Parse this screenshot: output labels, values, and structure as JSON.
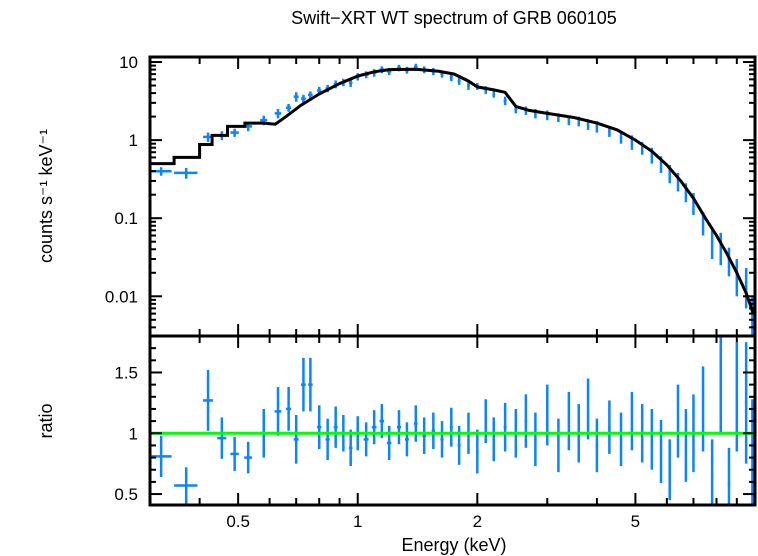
{
  "chart_data": [
    {
      "type": "scatter",
      "title": "Swift−XRT WT spectrum of GRB 060105",
      "xlabel": "Energy (keV)",
      "ylabel": "counts s⁻¹ keV⁻¹",
      "xscale": "log",
      "yscale": "log",
      "xlim": [
        0.3,
        10
      ],
      "ylim": [
        0.0031,
        11.6
      ],
      "yticks": [
        {
          "v": 10,
          "label": "10"
        },
        {
          "v": 1,
          "label": "1"
        },
        {
          "v": 0.1,
          "label": "0.1"
        },
        {
          "v": 0.01,
          "label": "0.01"
        }
      ],
      "colors": {
        "data": "#0a84ff",
        "model": "#000000"
      },
      "series": [
        {
          "kind": "data-with-errors",
          "points": [
            [
              0.32,
              0.02,
              0.4,
              0.05
            ],
            [
              0.37,
              0.025,
              0.38,
              0.06
            ],
            [
              0.42,
              0.012,
              1.1,
              0.15
            ],
            [
              0.455,
              0.012,
              1.15,
              0.15
            ],
            [
              0.49,
              0.012,
              1.25,
              0.15
            ],
            [
              0.53,
              0.012,
              1.5,
              0.2
            ],
            [
              0.58,
              0.012,
              1.8,
              0.25
            ],
            [
              0.63,
              0.012,
              2.2,
              0.3
            ],
            [
              0.67,
              0.01,
              2.6,
              0.3
            ],
            [
              0.7,
              0.01,
              3.6,
              0.5
            ],
            [
              0.73,
              0.01,
              3.4,
              0.4
            ],
            [
              0.76,
              0.01,
              3.8,
              0.4
            ],
            [
              0.8,
              0.01,
              4.3,
              0.5
            ],
            [
              0.84,
              0.01,
              4.6,
              0.5
            ],
            [
              0.88,
              0.01,
              5.2,
              0.6
            ],
            [
              0.92,
              0.01,
              5.5,
              0.6
            ],
            [
              0.96,
              0.01,
              5.4,
              0.6
            ],
            [
              1.0,
              0.01,
              6.5,
              0.7
            ],
            [
              1.05,
              0.015,
              6.9,
              0.7
            ],
            [
              1.1,
              0.015,
              7.3,
              0.8
            ],
            [
              1.15,
              0.015,
              8.0,
              0.8
            ],
            [
              1.2,
              0.015,
              7.6,
              0.8
            ],
            [
              1.27,
              0.015,
              8.4,
              0.8
            ],
            [
              1.33,
              0.015,
              7.9,
              0.8
            ],
            [
              1.4,
              0.015,
              8.6,
              0.9
            ],
            [
              1.47,
              0.015,
              8.0,
              0.8
            ],
            [
              1.55,
              0.015,
              7.6,
              0.8
            ],
            [
              1.63,
              0.015,
              7.0,
              0.7
            ],
            [
              1.72,
              0.015,
              6.4,
              0.7
            ],
            [
              1.8,
              0.015,
              5.7,
              0.6
            ],
            [
              1.9,
              0.015,
              5.0,
              0.6
            ],
            [
              2.0,
              0.015,
              4.9,
              0.5
            ],
            [
              2.1,
              0.015,
              4.4,
              0.5
            ],
            [
              2.2,
              0.015,
              4.0,
              0.5
            ],
            [
              2.35,
              0.02,
              3.2,
              0.4
            ],
            [
              2.5,
              0.02,
              2.5,
              0.3
            ],
            [
              2.65,
              0.02,
              2.4,
              0.3
            ],
            [
              2.8,
              0.02,
              2.2,
              0.3
            ],
            [
              3.0,
              0.02,
              2.1,
              0.3
            ],
            [
              3.2,
              0.02,
              1.95,
              0.25
            ],
            [
              3.4,
              0.02,
              1.8,
              0.25
            ],
            [
              3.6,
              0.02,
              1.75,
              0.25
            ],
            [
              3.8,
              0.02,
              1.6,
              0.25
            ],
            [
              4.0,
              0.03,
              1.5,
              0.25
            ],
            [
              4.3,
              0.03,
              1.3,
              0.2
            ],
            [
              4.6,
              0.03,
              1.1,
              0.2
            ],
            [
              4.9,
              0.03,
              0.95,
              0.2
            ],
            [
              5.2,
              0.03,
              0.8,
              0.15
            ],
            [
              5.5,
              0.03,
              0.65,
              0.15
            ],
            [
              5.8,
              0.03,
              0.5,
              0.12
            ],
            [
              6.1,
              0.03,
              0.38,
              0.1
            ],
            [
              6.4,
              0.03,
              0.3,
              0.08
            ],
            [
              6.7,
              0.03,
              0.22,
              0.06
            ],
            [
              7.0,
              0.04,
              0.16,
              0.05
            ],
            [
              7.4,
              0.04,
              0.09,
              0.03
            ],
            [
              7.8,
              0.05,
              0.05,
              0.02
            ],
            [
              8.2,
              0.05,
              0.045,
              0.02
            ],
            [
              8.6,
              0.06,
              0.03,
              0.012
            ],
            [
              9.0,
              0.06,
              0.02,
              0.01
            ],
            [
              9.5,
              0.07,
              0.015,
              0.008
            ],
            [
              9.85,
              0.05,
              0.006,
              0.004
            ]
          ]
        },
        {
          "kind": "model",
          "points": [
            [
              0.3,
              0.5
            ],
            [
              0.345,
              0.5
            ],
            [
              0.345,
              0.6
            ],
            [
              0.4,
              0.6
            ],
            [
              0.4,
              0.88
            ],
            [
              0.43,
              0.88
            ],
            [
              0.43,
              1.15
            ],
            [
              0.47,
              1.15
            ],
            [
              0.47,
              1.5
            ],
            [
              0.52,
              1.5
            ],
            [
              0.52,
              1.65
            ],
            [
              0.58,
              1.65
            ],
            [
              0.62,
              1.6
            ],
            [
              0.66,
              2.0
            ],
            [
              0.72,
              2.8
            ],
            [
              0.8,
              3.9
            ],
            [
              0.9,
              5.3
            ],
            [
              1.0,
              6.6
            ],
            [
              1.1,
              7.5
            ],
            [
              1.2,
              8.0
            ],
            [
              1.4,
              8.1
            ],
            [
              1.6,
              7.6
            ],
            [
              1.75,
              7.0
            ],
            [
              1.9,
              5.7
            ],
            [
              2.0,
              4.8
            ],
            [
              2.2,
              4.4
            ],
            [
              2.35,
              4.1
            ],
            [
              2.5,
              2.7
            ],
            [
              2.7,
              2.4
            ],
            [
              3.0,
              2.2
            ],
            [
              3.5,
              1.95
            ],
            [
              4.0,
              1.65
            ],
            [
              4.5,
              1.35
            ],
            [
              5.0,
              1.0
            ],
            [
              5.5,
              0.72
            ],
            [
              6.0,
              0.48
            ],
            [
              6.5,
              0.3
            ],
            [
              7.0,
              0.18
            ],
            [
              7.5,
              0.1
            ],
            [
              8.0,
              0.06
            ],
            [
              8.5,
              0.035
            ],
            [
              9.0,
              0.02
            ],
            [
              9.5,
              0.011
            ],
            [
              9.9,
              0.006
            ]
          ]
        }
      ]
    },
    {
      "type": "scatter",
      "xlabel": "Energy (keV)",
      "ylabel": "ratio",
      "xscale": "log",
      "xlim": [
        0.3,
        10
      ],
      "ylim": [
        0.41,
        1.8
      ],
      "xticks": [
        {
          "v": 0.5,
          "label": "0.5"
        },
        {
          "v": 1,
          "label": "1"
        },
        {
          "v": 2,
          "label": "2"
        },
        {
          "v": 5,
          "label": "5"
        }
      ],
      "yticks": [
        {
          "v": 1.5,
          "label": "1.5"
        },
        {
          "v": 1,
          "label": "1"
        },
        {
          "v": 0.5,
          "label": "0.5"
        }
      ],
      "colors": {
        "data": "#0a84ff",
        "reference": "#00ff00"
      },
      "reference_line": 1,
      "series": [
        {
          "kind": "data-with-errors",
          "points": [
            [
              0.32,
              0.02,
              0.81,
              0.17
            ],
            [
              0.37,
              0.025,
              0.57,
              0.15
            ],
            [
              0.42,
              0.012,
              1.27,
              0.25
            ],
            [
              0.455,
              0.012,
              0.96,
              0.17
            ],
            [
              0.49,
              0.012,
              0.83,
              0.14
            ],
            [
              0.53,
              0.012,
              0.8,
              0.13
            ],
            [
              0.58,
              0.012,
              1.0,
              0.2
            ],
            [
              0.63,
              0.012,
              1.18,
              0.2
            ],
            [
              0.67,
              0.01,
              1.2,
              0.18
            ],
            [
              0.7,
              0.01,
              0.95,
              0.2
            ],
            [
              0.73,
              0.01,
              1.4,
              0.22
            ],
            [
              0.76,
              0.01,
              1.4,
              0.22
            ],
            [
              0.8,
              0.01,
              1.05,
              0.18
            ],
            [
              0.84,
              0.01,
              0.95,
              0.17
            ],
            [
              0.88,
              0.01,
              1.05,
              0.17
            ],
            [
              0.92,
              0.01,
              1.0,
              0.15
            ],
            [
              0.96,
              0.01,
              0.88,
              0.15
            ],
            [
              1.0,
              0.01,
              1.0,
              0.14
            ],
            [
              1.05,
              0.015,
              0.95,
              0.14
            ],
            [
              1.1,
              0.015,
              1.05,
              0.14
            ],
            [
              1.15,
              0.015,
              1.1,
              0.14
            ],
            [
              1.2,
              0.015,
              0.92,
              0.14
            ],
            [
              1.27,
              0.015,
              1.05,
              0.14
            ],
            [
              1.33,
              0.015,
              0.95,
              0.14
            ],
            [
              1.4,
              0.015,
              1.08,
              0.15
            ],
            [
              1.47,
              0.015,
              0.98,
              0.15
            ],
            [
              1.55,
              0.015,
              1.02,
              0.15
            ],
            [
              1.63,
              0.015,
              0.95,
              0.15
            ],
            [
              1.72,
              0.015,
              1.05,
              0.16
            ],
            [
              1.8,
              0.015,
              0.9,
              0.16
            ],
            [
              1.9,
              0.015,
              1.0,
              0.17
            ],
            [
              2.0,
              0.015,
              0.85,
              0.18
            ],
            [
              2.1,
              0.015,
              1.1,
              0.18
            ],
            [
              2.2,
              0.015,
              0.95,
              0.18
            ],
            [
              2.35,
              0.02,
              1.05,
              0.2
            ],
            [
              2.5,
              0.02,
              1.0,
              0.2
            ],
            [
              2.65,
              0.02,
              1.1,
              0.22
            ],
            [
              2.8,
              0.02,
              0.95,
              0.22
            ],
            [
              3.0,
              0.02,
              1.15,
              0.25
            ],
            [
              3.2,
              0.02,
              0.9,
              0.22
            ],
            [
              3.4,
              0.02,
              1.1,
              0.24
            ],
            [
              3.6,
              0.02,
              1.0,
              0.24
            ],
            [
              3.8,
              0.02,
              1.2,
              0.25
            ],
            [
              4.0,
              0.03,
              0.9,
              0.22
            ],
            [
              4.3,
              0.03,
              1.05,
              0.22
            ],
            [
              4.6,
              0.03,
              0.95,
              0.22
            ],
            [
              4.9,
              0.03,
              1.1,
              0.24
            ],
            [
              5.2,
              0.03,
              1.0,
              0.24
            ],
            [
              5.5,
              0.03,
              0.95,
              0.25
            ],
            [
              5.8,
              0.03,
              0.85,
              0.26
            ],
            [
              6.1,
              0.03,
              0.7,
              0.25
            ],
            [
              6.4,
              0.03,
              1.1,
              0.3
            ],
            [
              6.7,
              0.03,
              0.9,
              0.3
            ],
            [
              7.0,
              0.04,
              1.0,
              0.32
            ],
            [
              7.4,
              0.04,
              1.2,
              0.35
            ],
            [
              7.8,
              0.05,
              0.65,
              0.3
            ],
            [
              8.2,
              0.05,
              1.4,
              0.4
            ],
            [
              8.6,
              0.06,
              0.58,
              0.3
            ],
            [
              9.0,
              0.06,
              1.3,
              0.45
            ],
            [
              9.5,
              0.07,
              1.25,
              0.5
            ],
            [
              9.85,
              0.05,
              0.78,
              0.5
            ]
          ]
        }
      ]
    }
  ]
}
